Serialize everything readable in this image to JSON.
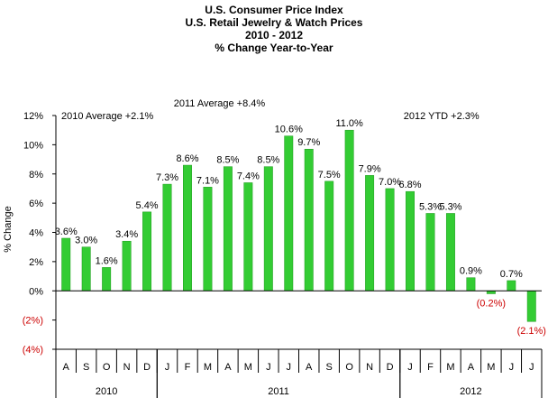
{
  "chart_data": {
    "type": "bar",
    "title_lines": [
      "U.S. Consumer Price Index",
      "U.S. Retail Jewelry & Watch Prices",
      "2010 - 2012",
      "% Change Year-to-Year"
    ],
    "ylabel": "% Change",
    "ylim": [
      -4,
      12
    ],
    "yticks": [
      12,
      10,
      8,
      6,
      4,
      2,
      0,
      -2,
      -4
    ],
    "ytick_labels": [
      "12%",
      "10%",
      "8%",
      "6%",
      "4%",
      "2%",
      "0%",
      "(2%)",
      "(4%)"
    ],
    "categories": [
      "A",
      "S",
      "O",
      "N",
      "D",
      "J",
      "F",
      "M",
      "A",
      "M",
      "J",
      "J",
      "A",
      "S",
      "O",
      "N",
      "D",
      "J",
      "F",
      "M",
      "A",
      "M",
      "J",
      "J"
    ],
    "values": [
      3.6,
      3.0,
      1.6,
      3.4,
      5.4,
      7.3,
      8.6,
      7.1,
      8.5,
      7.4,
      8.5,
      10.6,
      9.7,
      7.5,
      11.0,
      7.9,
      7.0,
      6.8,
      5.3,
      5.3,
      0.9,
      -0.2,
      0.7,
      -2.1
    ],
    "value_labels": [
      "3.6%",
      "3.0%",
      "1.6%",
      "3.4%",
      "5.4%",
      "7.3%",
      "8.6%",
      "7.1%",
      "8.5%",
      "7.4%",
      "8.5%",
      "10.6%",
      "9.7%",
      "7.5%",
      "11.0%",
      "7.9%",
      "7.0%",
      "6.8%",
      "5.3%",
      "5.3%",
      "0.9%",
      "(0.2%)",
      "0.7%",
      "(2.1%)"
    ],
    "year_groups": [
      {
        "label": "2010",
        "start": 0,
        "count": 5
      },
      {
        "label": "2011",
        "start": 5,
        "count": 12
      },
      {
        "label": "2012",
        "start": 17,
        "count": 7
      }
    ],
    "annotations": [
      {
        "text": "2010 Average +2.1%",
        "anchor_index": 0
      },
      {
        "text": "2011 Average +8.4%",
        "anchor_index": 6
      },
      {
        "text": "2012 YTD +2.3%",
        "anchor_index": 17
      }
    ],
    "grid": false,
    "colors": {
      "bar": "#33cc33",
      "bar_edge": "#1e9a1e",
      "negative_text": "#cc0000"
    }
  }
}
